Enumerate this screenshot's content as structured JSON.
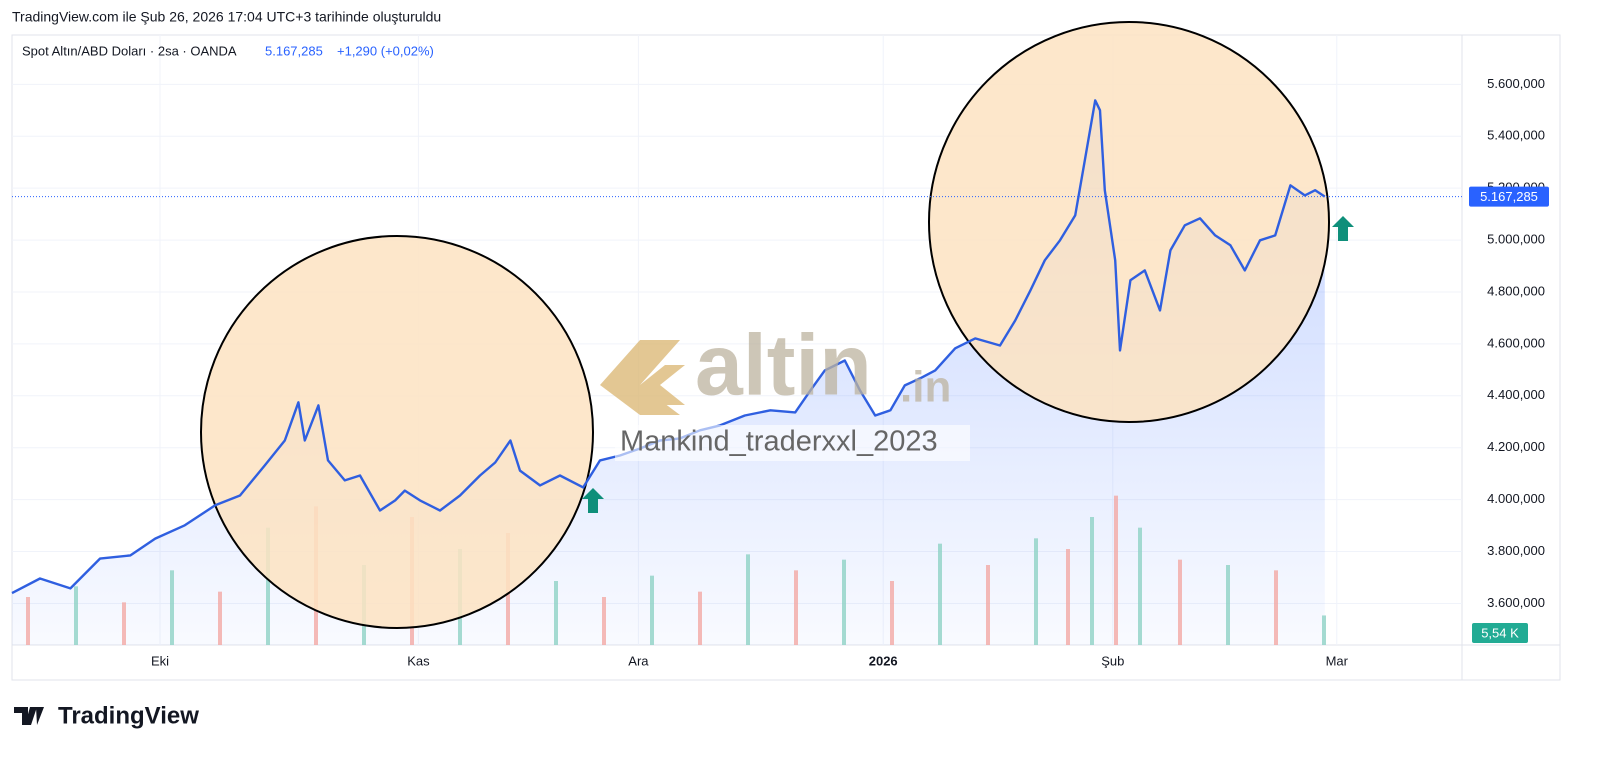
{
  "header": {
    "created": "TradingView.com ile Şub 26, 2026 17:04 UTC+3 tarihinde oluşturuldu",
    "symbol": "Spot Altın/ABD Doları · 2sa · OANDA",
    "change": "+1,290 (+0,02%)"
  },
  "watermark": {
    "brand": "altin",
    "brand_suffix": ".in",
    "author": "Mankind_traderxxl_2023"
  },
  "footer": {
    "logo_text": "TradingView"
  },
  "chart_data": {
    "type": "area",
    "x": [
      0,
      3.5,
      7.3,
      11,
      14.8,
      17.9,
      21.6,
      25.4,
      28.5,
      31.6,
      34.1,
      35.8,
      36.6,
      38.3,
      39.5,
      41.6,
      43.5,
      46,
      47.9,
      49.1,
      51,
      53.5,
      56,
      58.5,
      60.4,
      62.3,
      63.5,
      66,
      68.5,
      71.4,
      73.5,
      76,
      78.5,
      81,
      83.5,
      86,
      88.5,
      91.6,
      94.8,
      97.9,
      99.8,
      101.6,
      104.1,
      106,
      107.9,
      109.8,
      111.6,
      113.5,
      115.4,
      117.9,
      120.4,
      123.5,
      125.4,
      127.3,
      129.1,
      131,
      132.9,
      134.1,
      135.4,
      136,
      136.6,
      137.9,
      138.5,
      139.8,
      141.6,
      143.5,
      144.8,
      146.6,
      148.5,
      150.4,
      152.3,
      154.1,
      156,
      157.9,
      159.8,
      161.6,
      162.9,
      164.1
    ],
    "series": [
      {
        "color": "#2f5fe0",
        "values": [
          3640,
          3696,
          3658,
          3773,
          3785,
          3850,
          3901,
          3978,
          4016,
          4132,
          4228,
          4375,
          4228,
          4363,
          4151,
          4074,
          4093,
          3958,
          3997,
          4035,
          3997,
          3958,
          4016,
          4093,
          4143,
          4228,
          4112,
          4055,
          4093,
          4047,
          4151,
          4170,
          4197,
          4228,
          4236,
          4267,
          4286,
          4324,
          4344,
          4336,
          4421,
          4498,
          4536,
          4421,
          4324,
          4344,
          4440,
          4467,
          4498,
          4583,
          4621,
          4594,
          4690,
          4806,
          4922,
          4999,
          5095,
          5307,
          5538,
          5500,
          5192,
          4922,
          4575,
          4845,
          4883,
          4729,
          4960,
          5057,
          5084,
          5018,
          4980,
          4883,
          4999,
          5018,
          5211,
          5172,
          5192,
          5167.285
        ]
      }
    ],
    "last_price": {
      "value": 5167.285,
      "label": "5.167,285"
    },
    "xlim": [
      0,
      181.25
    ],
    "xticks": [
      {
        "value": 18.5,
        "label": "Eki"
      },
      {
        "value": 50.8,
        "label": "Kas"
      },
      {
        "value": 78.3,
        "label": "Ara"
      },
      {
        "value": 108.9,
        "label": "2026"
      },
      {
        "value": 137.6,
        "label": "Şub"
      },
      {
        "value": 165.6,
        "label": "Mar"
      }
    ],
    "ylim": [
      3440,
      5790
    ],
    "yticks": [
      {
        "value": 3600,
        "label": "3.600,000"
      },
      {
        "value": 3800,
        "label": "3.800,000"
      },
      {
        "value": 4000,
        "label": "4.000,000"
      },
      {
        "value": 4200,
        "label": "4.200,000"
      },
      {
        "value": 4400,
        "label": "4.400,000"
      },
      {
        "value": 4600,
        "label": "4.600,000"
      },
      {
        "value": 4800,
        "label": "4.800,000"
      },
      {
        "value": 5000,
        "label": "5.000,000"
      },
      {
        "value": 5200,
        "label": "5.200,000"
      },
      {
        "value": 5400,
        "label": "5.400,000"
      },
      {
        "value": 5600,
        "label": "5.600,000"
      }
    ],
    "grid": true,
    "volume": {
      "x": [
        2,
        8,
        14,
        20,
        26,
        32,
        38,
        44,
        50,
        56,
        62,
        68,
        74,
        80,
        86,
        92,
        98,
        104,
        110,
        116,
        122,
        128,
        132,
        135,
        138,
        141,
        146,
        152,
        158,
        164
      ],
      "values": [
        9000,
        11000,
        8000,
        14000,
        10000,
        22000,
        26000,
        15000,
        24000,
        18000,
        21000,
        12000,
        9000,
        13000,
        10000,
        17000,
        14000,
        16000,
        12000,
        19000,
        15000,
        20000,
        18000,
        24000,
        28000,
        22000,
        16000,
        15000,
        14000,
        5540
      ],
      "value_labels": [
        null,
        null,
        null,
        null,
        null,
        null,
        null,
        null,
        null,
        null,
        null,
        null,
        null,
        null,
        null,
        null,
        null,
        null,
        null,
        null,
        null,
        null,
        null,
        null,
        null,
        null,
        null,
        null,
        null,
        "5,54 K"
      ],
      "vlim": [
        0,
        30000
      ],
      "colors": [
        "#f2a9a5",
        "#8fd2c6"
      ]
    }
  }
}
